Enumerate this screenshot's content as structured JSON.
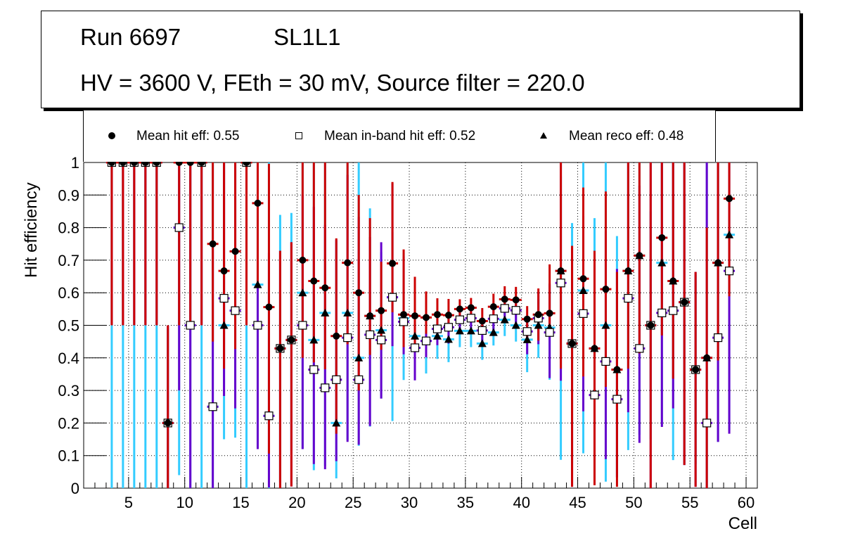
{
  "header": {
    "run_label": "Run 6697",
    "layer_label": "SL1L1",
    "conditions": "HV = 3600 V, FEth = 30 mV, Source filter = 220.0"
  },
  "legend": [
    {
      "marker": "filled-circle-icon",
      "label": "Mean hit  eff: 0.55"
    },
    {
      "marker": "open-square-icon",
      "label": "Mean in-band hit eff: 0.52"
    },
    {
      "marker": "filled-triangle-icon",
      "label": "Mean reco eff: 0.48"
    }
  ],
  "colors": {
    "hit_error": "#cc0000",
    "inband_error": "#6600cc",
    "reco_error": "#33ccff",
    "marker": "#000000",
    "grid": "#000000"
  },
  "chart_data": {
    "type": "scatter",
    "title": "",
    "xlabel": "Cell",
    "ylabel": "Hit efficiency",
    "xlim": [
      1,
      61
    ],
    "ylim": [
      0,
      1
    ],
    "xticks": [
      5,
      10,
      15,
      20,
      25,
      30,
      35,
      40,
      45,
      50,
      55,
      60
    ],
    "yticks": [
      0,
      0.1,
      0.2,
      0.3,
      0.4,
      0.5,
      0.6,
      0.7,
      0.8,
      0.9,
      1
    ],
    "ytick_labels": [
      "0",
      "0.1",
      "0.2",
      "0.3",
      "0.4",
      "0.5",
      "0.6",
      "0.7",
      "0.8",
      "0.9",
      "1"
    ],
    "grid": true,
    "legend_position": "top",
    "x": [
      3.5,
      4.5,
      5.5,
      6.5,
      7.5,
      8.5,
      9.5,
      10.5,
      11.5,
      12.5,
      13.5,
      14.5,
      15.5,
      16.5,
      17.5,
      18.5,
      19.5,
      20.5,
      21.5,
      22.5,
      23.5,
      24.5,
      25.5,
      26.5,
      27.5,
      28.5,
      29.5,
      30.5,
      31.5,
      32.5,
      33.5,
      34.5,
      35.5,
      36.5,
      37.5,
      38.5,
      39.5,
      40.5,
      41.5,
      42.5,
      43.5,
      44.5,
      45.5,
      46.5,
      47.5,
      48.5,
      49.5,
      50.5,
      51.5,
      52.5,
      53.5,
      54.5,
      55.5,
      56.5,
      57.5,
      58.5
    ],
    "series": [
      {
        "name": "Mean hit eff",
        "marker": "circle",
        "error_color": "#cc0000",
        "values": [
          1,
          1,
          1,
          1,
          1,
          0.2,
          1,
          1,
          1,
          0.75,
          0.667,
          0.727,
          1,
          0.875,
          0.556,
          0.429,
          0.455,
          0.7,
          0.636,
          0.615,
          0.467,
          0.692,
          0.6,
          0.529,
          0.545,
          0.69,
          0.533,
          0.529,
          0.524,
          0.533,
          0.531,
          0.55,
          0.554,
          0.513,
          0.557,
          0.58,
          0.578,
          0.519,
          0.533,
          0.537,
          0.667,
          0.444,
          0.643,
          0.429,
          0.611,
          0.364,
          0.667,
          0.714,
          0.5,
          0.769,
          0.636,
          0.571,
          0.364,
          0.4,
          0.692,
          0.889
        ],
        "err_lo": [
          0.5,
          0.5,
          0.5,
          0.5,
          0.5,
          0.2,
          0.5,
          0.5,
          0.5,
          0.3,
          0.3,
          0.3,
          0.5,
          0.25,
          0.45,
          0.43,
          0.45,
          0.3,
          0.25,
          0.25,
          0.3,
          0.25,
          0.3,
          0.12,
          0.12,
          0.15,
          0.1,
          0.1,
          0.05,
          0.05,
          0.05,
          0.03,
          0.03,
          0.04,
          0.04,
          0.04,
          0.04,
          0.07,
          0.08,
          0.06,
          0.3,
          0.44,
          0.3,
          0.42,
          0.3,
          0.36,
          0.3,
          0.3,
          0.5,
          0.3,
          0.3,
          0.5,
          0.36,
          0.4,
          0.3,
          0.3
        ],
        "err_hi": [
          0,
          0,
          0,
          0,
          0,
          0.3,
          0,
          0,
          0,
          0.25,
          0.333,
          0.273,
          0,
          0.125,
          0.44,
          0.3,
          0.3,
          0.3,
          0.364,
          0.385,
          0.3,
          0.308,
          0.3,
          0.3,
          0.15,
          0.25,
          0.2,
          0.12,
          0.08,
          0.05,
          0.05,
          0.03,
          0.03,
          0.04,
          0.04,
          0.04,
          0.04,
          0.04,
          0.08,
          0.15,
          0.333,
          0.3,
          0.28,
          0.3,
          0.3,
          0.3,
          0.333,
          0.286,
          0.5,
          0.231,
          0.364,
          0.429,
          0.3,
          0.4,
          0.308,
          0.111
        ]
      },
      {
        "name": "Mean in-band hit eff",
        "marker": "square",
        "error_color": "#6600cc",
        "values": [
          1,
          1,
          1,
          1,
          1,
          0.2,
          0.8,
          0.5,
          1,
          0.25,
          0.583,
          0.545,
          1,
          0.5,
          0.222,
          0.429,
          0.455,
          0.5,
          0.364,
          0.308,
          0.333,
          0.462,
          0.333,
          0.471,
          0.455,
          0.586,
          0.511,
          0.431,
          0.452,
          0.489,
          0.494,
          0.517,
          0.522,
          0.484,
          0.52,
          0.552,
          0.546,
          0.481,
          0.522,
          0.478,
          0.63,
          0.444,
          0.536,
          0.286,
          0.389,
          0.273,
          0.583,
          0.429,
          0.5,
          0.538,
          0.545,
          0.571,
          0.364,
          0.2,
          0.462,
          0.667
        ],
        "err_lo": [
          0.5,
          0.5,
          0.5,
          0.5,
          0.5,
          0.2,
          0.5,
          0.5,
          0.5,
          0.25,
          0.3,
          0.3,
          0.5,
          0.38,
          0.22,
          0.43,
          0.45,
          0.38,
          0.29,
          0.25,
          0.25,
          0.32,
          0.2,
          0.28,
          0.18,
          0.15,
          0.1,
          0.1,
          0.05,
          0.05,
          0.05,
          0.03,
          0.03,
          0.04,
          0.04,
          0.04,
          0.04,
          0.07,
          0.08,
          0.14,
          0.3,
          0.44,
          0.3,
          0.2,
          0.3,
          0.24,
          0.35,
          0.29,
          0.5,
          0.35,
          0.3,
          0.5,
          0.36,
          0.2,
          0.32,
          0.5
        ],
        "err_hi": [
          0,
          0,
          0,
          0,
          0,
          0.3,
          0.2,
          0.5,
          0,
          0.5,
          0.417,
          0.455,
          0,
          0.5,
          0.5,
          0.3,
          0.3,
          0.4,
          0.5,
          0.5,
          0.43,
          0.5,
          0.5,
          0.3,
          0.3,
          0.35,
          0.2,
          0.12,
          0.08,
          0.05,
          0.05,
          0.03,
          0.03,
          0.04,
          0.04,
          0.04,
          0.04,
          0.04,
          0.08,
          0.15,
          0.37,
          0.3,
          0.3,
          0.4,
          0.4,
          0.4,
          0.417,
          0.5,
          0.5,
          0.462,
          0.455,
          0.429,
          0.3,
          0.8,
          0.538,
          0.333
        ]
      },
      {
        "name": "Mean reco eff",
        "marker": "triangle",
        "error_color": "#33ccff",
        "values": [
          1,
          1,
          1,
          1,
          1,
          0.2,
          0.8,
          0.5,
          1,
          0.25,
          0.5,
          0.545,
          1,
          0.625,
          0.222,
          0.429,
          0.455,
          0.6,
          0.455,
          0.538,
          0.2,
          0.538,
          0.4,
          0.529,
          0.485,
          0.586,
          0.522,
          0.467,
          0.452,
          0.467,
          0.457,
          0.483,
          0.483,
          0.444,
          0.478,
          0.517,
          0.5,
          0.456,
          0.5,
          0.493,
          0.667,
          0.444,
          0.607,
          0.429,
          0.5,
          0.364,
          0.667,
          0.714,
          0.5,
          0.692,
          0.636,
          0.571,
          0.364,
          0.4,
          0.692,
          0.778
        ],
        "err_lo": [
          1,
          1,
          1,
          1,
          1,
          0.2,
          0.76,
          0.5,
          1,
          0.25,
          0.35,
          0.39,
          1,
          0.5,
          0.222,
          0.41,
          0.34,
          0.48,
          0.4,
          0.47,
          0.17,
          0.39,
          0.27,
          0.34,
          0.21,
          0.38,
          0.19,
          0.13,
          0.1,
          0.07,
          0.07,
          0.05,
          0.05,
          0.05,
          0.04,
          0.05,
          0.05,
          0.1,
          0.1,
          0.16,
          0.58,
          0.37,
          0.5,
          0.4,
          0.48,
          0.33,
          0.55,
          0.55,
          0.35,
          0.5,
          0.55,
          0.5,
          0.29,
          0.4,
          0.55,
          0.6
        ],
        "err_hi": [
          0,
          0,
          0,
          0,
          0,
          0.29,
          0.2,
          0.5,
          0,
          0.75,
          0.5,
          0.455,
          0,
          0.375,
          0.778,
          0.41,
          0.39,
          0.4,
          0.545,
          0.462,
          0.56,
          0.462,
          0.6,
          0.33,
          0.24,
          0.2,
          0.2,
          0.12,
          0.08,
          0.07,
          0.07,
          0.05,
          0.05,
          0.05,
          0.04,
          0.05,
          0.05,
          0.06,
          0.08,
          0.13,
          0.29,
          0.37,
          0.393,
          0.4,
          0.5,
          0.41,
          0.333,
          0.286,
          0.35,
          0.308,
          0.364,
          0.429,
          0.29,
          0.6,
          0.308,
          0.222
        ]
      }
    ]
  }
}
